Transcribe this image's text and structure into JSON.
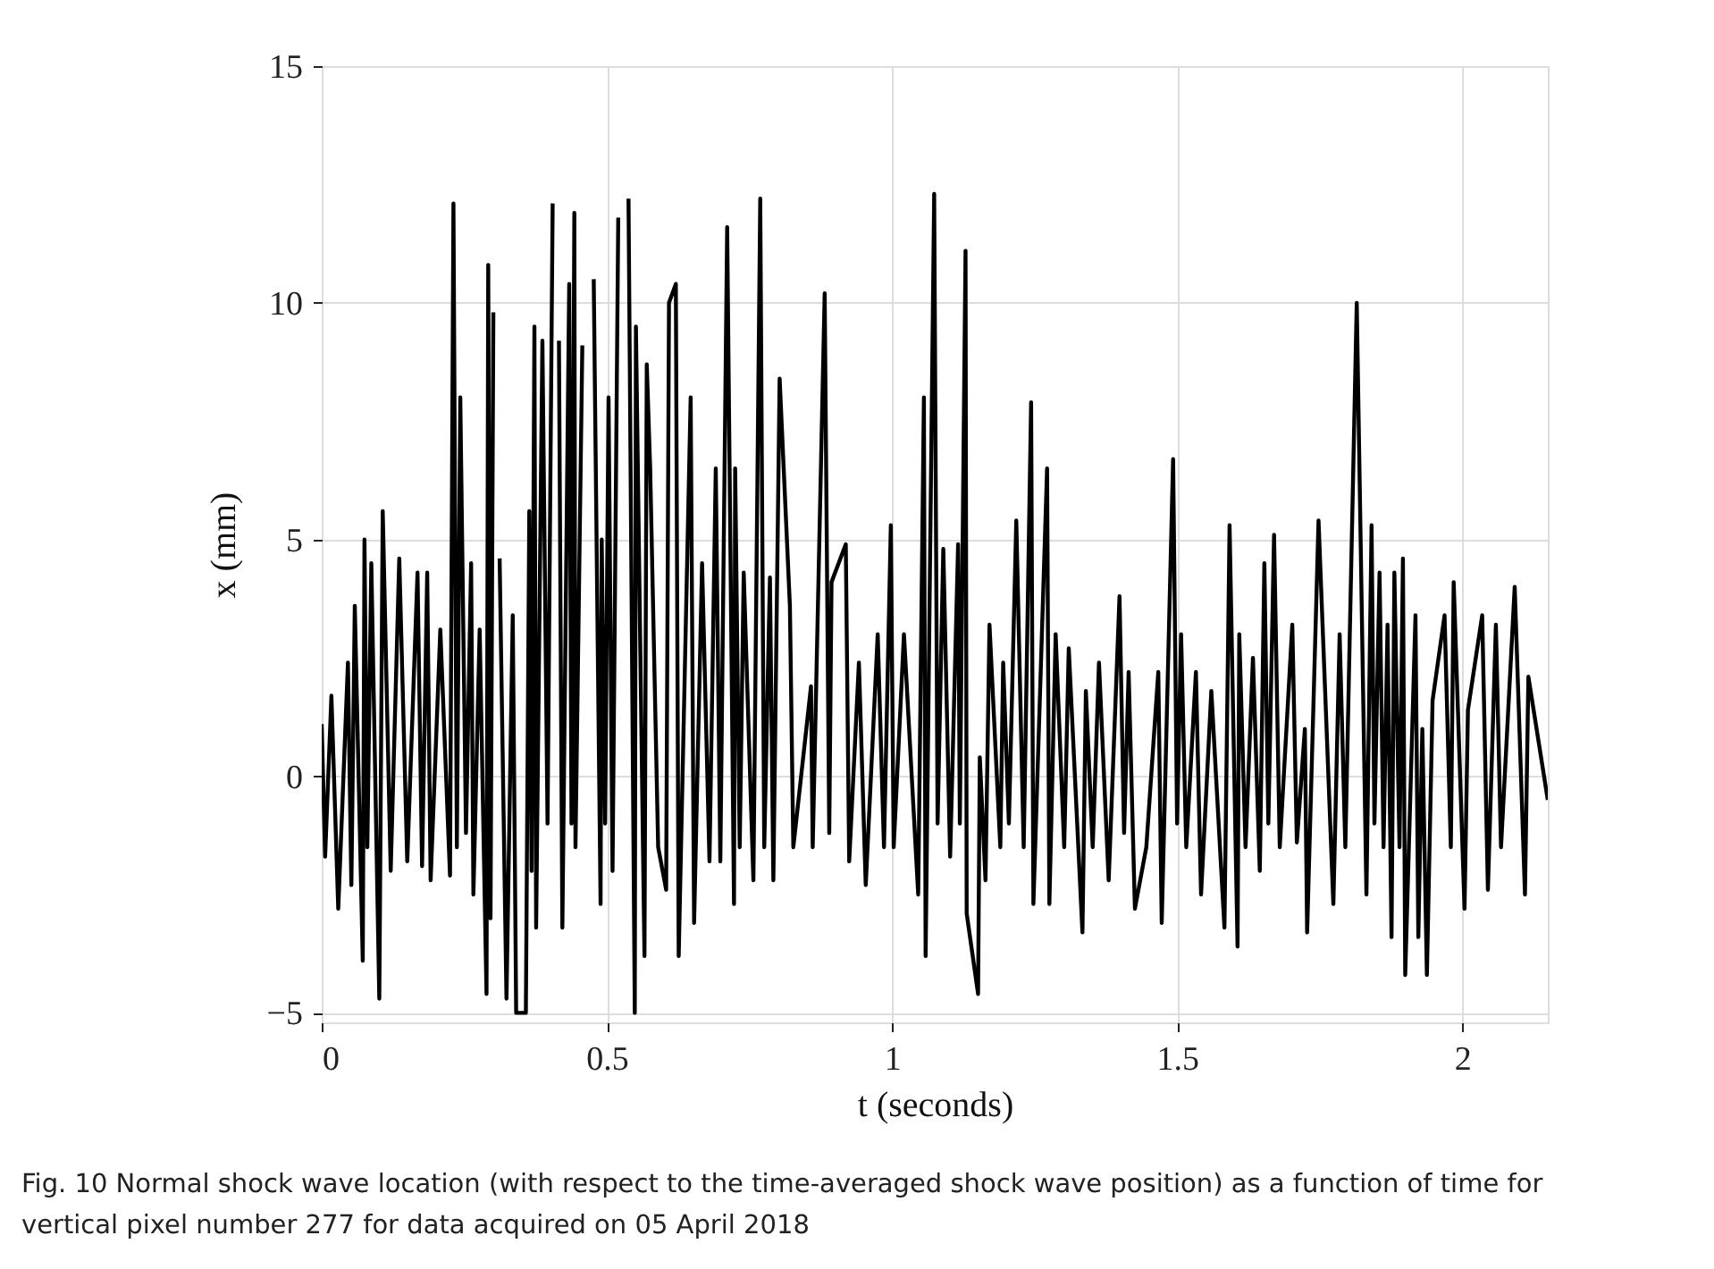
{
  "chart_data": {
    "type": "line",
    "xlabel": "t (seconds)",
    "ylabel": "x (mm)",
    "xlim": [
      0,
      2.15
    ],
    "xticks": [
      0,
      0.5,
      1,
      1.5,
      2
    ],
    "ylim": [
      -5.2,
      15
    ],
    "yticks": [
      -5,
      0,
      5,
      10,
      15
    ],
    "grid": true,
    "marker": "none",
    "line_style": "solid",
    "annotations": [
      "Fig. 10 Normal shock wave location (with respect to the time-averaged shock wave position) as a function of time for vertical pixel number 277 for data acquired on 05 April 2018"
    ],
    "series": [
      {
        "color": "#000000",
        "x": [
          0.0,
          0.006,
          0.017,
          0.029,
          0.046,
          0.052,
          0.058,
          0.072,
          0.075,
          0.08,
          0.087,
          0.101,
          0.107,
          0.121,
          0.136,
          0.15,
          0.168,
          0.176,
          0.185,
          0.191,
          0.208,
          0.225,
          0.231,
          0.237,
          0.243,
          0.253,
          0.262,
          0.266,
          0.277,
          0.289,
          0.292,
          0.296,
          0.301,
          0.306,
          0.312,
          0.324,
          0.335,
          0.341,
          0.358,
          0.364,
          0.368,
          0.373,
          0.376,
          0.387,
          0.396,
          0.405,
          0.407,
          0.416,
          0.422,
          0.434,
          0.438,
          0.443,
          0.445,
          0.457,
          0.474,
          0.477,
          0.489,
          0.491,
          0.497,
          0.503,
          0.51,
          0.52,
          0.526,
          0.538,
          0.549,
          0.551,
          0.566,
          0.57,
          0.576,
          0.59,
          0.604,
          0.609,
          0.621,
          0.626,
          0.647,
          0.653,
          0.667,
          0.68,
          0.691,
          0.699,
          0.711,
          0.723,
          0.725,
          0.733,
          0.74,
          0.757,
          0.769,
          0.776,
          0.786,
          0.792,
          0.803,
          0.821,
          0.827,
          0.858,
          0.861,
          0.882,
          0.89,
          0.894,
          0.919,
          0.925,
          0.942,
          0.954,
          0.975,
          0.986,
          0.998,
          1.003,
          1.021,
          1.046,
          1.056,
          1.059,
          1.074,
          1.08,
          1.09,
          1.102,
          1.116,
          1.119,
          1.129,
          1.131,
          1.151,
          1.154,
          1.164,
          1.171,
          1.19,
          1.195,
          1.205,
          1.218,
          1.231,
          1.244,
          1.248,
          1.272,
          1.276,
          1.287,
          1.302,
          1.31,
          1.334,
          1.34,
          1.352,
          1.363,
          1.38,
          1.399,
          1.407,
          1.415,
          1.426,
          1.446,
          1.467,
          1.473,
          1.493,
          1.5,
          1.507,
          1.516,
          1.533,
          1.542,
          1.56,
          1.583,
          1.592,
          1.606,
          1.609,
          1.62,
          1.633,
          1.645,
          1.653,
          1.66,
          1.67,
          1.68,
          1.702,
          1.71,
          1.724,
          1.728,
          1.748,
          1.774,
          1.785,
          1.795,
          1.815,
          1.832,
          1.841,
          1.846,
          1.855,
          1.862,
          1.869,
          1.876,
          1.881,
          1.89,
          1.896,
          1.9,
          1.918,
          1.923,
          1.93,
          1.938,
          1.948,
          1.969,
          1.98,
          1.985,
          2.004,
          2.01,
          2.035,
          2.045,
          2.059,
          2.068,
          2.092,
          2.11,
          2.116,
          2.15
        ],
        "values": [
          1.1,
          -1.7,
          1.7,
          -2.8,
          2.4,
          -2.3,
          3.6,
          -3.9,
          5.0,
          -1.5,
          4.5,
          -4.7,
          5.6,
          -2.0,
          4.6,
          -1.8,
          4.3,
          -1.9,
          4.3,
          -2.2,
          3.1,
          -2.1,
          12.1,
          -1.5,
          8.0,
          -1.2,
          4.5,
          -2.5,
          3.1,
          -4.6,
          10.8,
          -3.0,
          9.8,
          null,
          4.6,
          -4.7,
          3.4,
          -5.0,
          -5.0,
          5.6,
          -2.0,
          9.5,
          -3.2,
          9.2,
          -1.0,
          12.1,
          null,
          9.2,
          -3.2,
          10.4,
          -1.0,
          11.9,
          -1.5,
          9.1,
          null,
          10.5,
          -2.7,
          5.0,
          -1.0,
          8.0,
          -2.0,
          11.8,
          null,
          12.2,
          -5.0,
          9.5,
          -3.8,
          8.7,
          6.5,
          -1.5,
          -2.4,
          10.0,
          10.4,
          -3.8,
          8.0,
          -3.1,
          4.5,
          -1.8,
          6.5,
          -1.8,
          11.6,
          -2.7,
          6.5,
          -1.5,
          4.3,
          -2.2,
          12.2,
          -1.5,
          4.2,
          -2.2,
          8.4,
          3.6,
          -1.5,
          1.9,
          -1.5,
          10.2,
          -1.2,
          4.1,
          4.9,
          -1.8,
          2.4,
          -2.3,
          3.0,
          -1.5,
          5.3,
          -1.5,
          3.0,
          -2.5,
          8.0,
          -3.8,
          12.3,
          -1.0,
          4.8,
          -1.7,
          4.9,
          -1.0,
          11.1,
          -2.9,
          -4.6,
          0.4,
          -2.2,
          3.2,
          -1.5,
          2.4,
          -1.0,
          5.4,
          -1.5,
          7.9,
          -2.7,
          6.5,
          -2.7,
          3.0,
          -1.5,
          2.7,
          -3.3,
          1.8,
          -1.5,
          2.4,
          -2.2,
          3.8,
          -1.2,
          2.2,
          -2.8,
          -1.5,
          2.2,
          -3.1,
          6.7,
          -1.0,
          3.0,
          -1.5,
          2.2,
          -2.5,
          1.8,
          -3.2,
          5.3,
          -3.6,
          3.0,
          -1.5,
          2.5,
          -2.0,
          4.5,
          -1.0,
          5.1,
          -1.5,
          3.2,
          -1.4,
          1.0,
          -3.3,
          5.4,
          -2.7,
          3.0,
          -1.5,
          10.0,
          -2.5,
          5.3,
          -1.0,
          4.3,
          -1.5,
          3.2,
          -3.4,
          4.3,
          -1.5,
          4.6,
          -4.2,
          3.4,
          -3.4,
          1.0,
          -4.2,
          1.6,
          3.4,
          -1.5,
          4.1,
          -2.8,
          1.4,
          3.4,
          -2.4,
          3.2,
          -1.5,
          4.0,
          -2.5,
          2.1,
          -0.5
        ]
      }
    ]
  }
}
